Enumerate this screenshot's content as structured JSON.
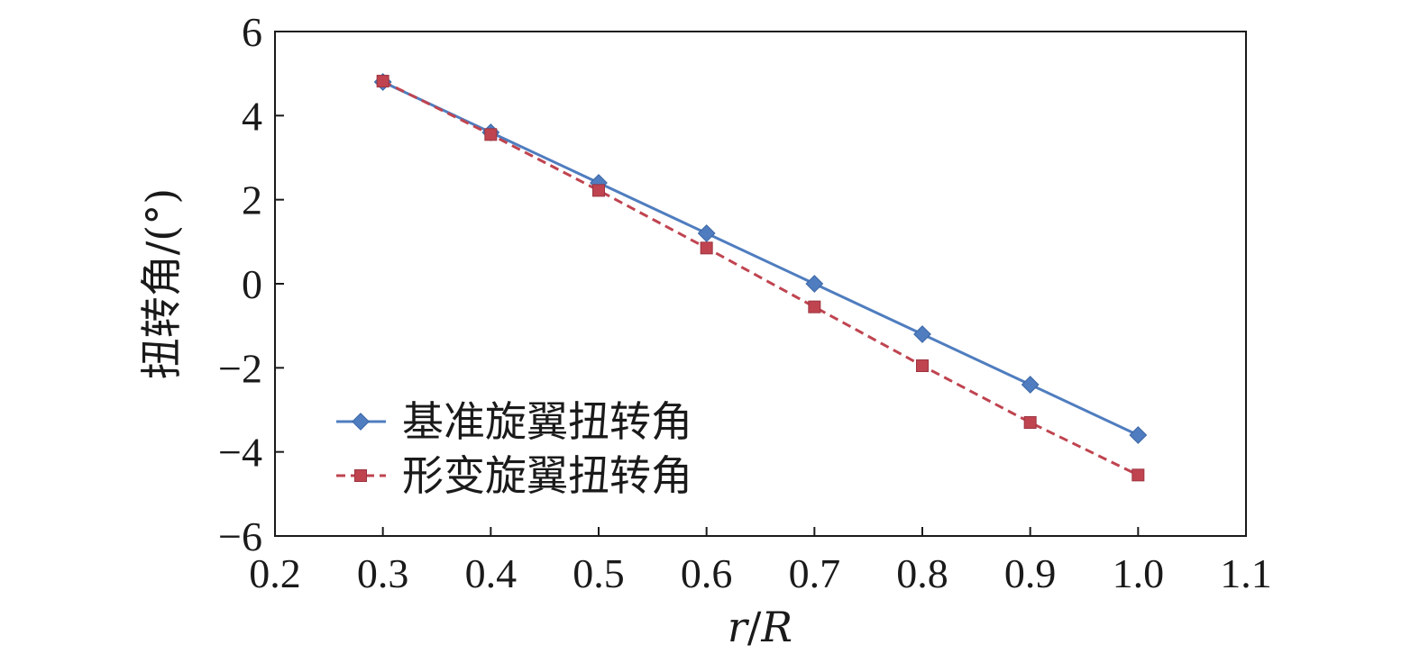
{
  "chart_data": {
    "type": "line",
    "xlabel": "r/R",
    "xlabel_italic_parts": [
      "r",
      "R"
    ],
    "ylabel": "扭转角/(°)",
    "xlim": [
      0.2,
      1.1
    ],
    "ylim": [
      -6,
      6
    ],
    "x_ticks": [
      0.2,
      0.3,
      0.4,
      0.5,
      0.6,
      0.7,
      0.8,
      0.9,
      1.0,
      1.1
    ],
    "x_tick_labels": [
      "0.2",
      "0.3",
      "0.4",
      "0.5",
      "0.6",
      "0.7",
      "0.8",
      "0.9",
      "1.0",
      "1.1"
    ],
    "y_ticks": [
      6,
      4,
      2,
      0,
      -2,
      -4,
      -6
    ],
    "y_tick_labels": [
      "6",
      "4",
      "2",
      "0",
      "−2",
      "−4",
      "−6"
    ],
    "grid": false,
    "legend_position": "bottom-left",
    "x": [
      0.3,
      0.4,
      0.5,
      0.6,
      0.7,
      0.8,
      0.9,
      1.0
    ],
    "series": [
      {
        "name": "基准旋翼扭转角",
        "values": [
          4.8,
          3.6,
          2.4,
          1.2,
          0.0,
          -1.2,
          -2.4,
          -3.6
        ],
        "color": "#4f7dbf",
        "marker": "diamond",
        "line_style": "solid"
      },
      {
        "name": "形变旋翼扭转角",
        "values": [
          4.82,
          3.55,
          2.22,
          0.85,
          -0.55,
          -1.95,
          -3.3,
          -4.55
        ],
        "color": "#bf4450",
        "marker": "square",
        "line_style": "dashed"
      }
    ]
  }
}
